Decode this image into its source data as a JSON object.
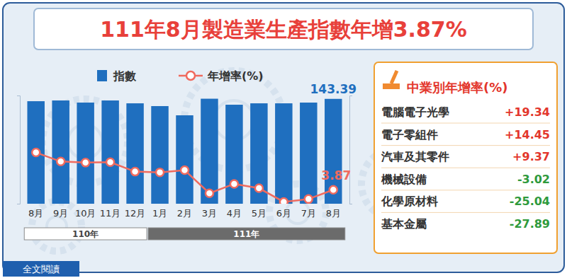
{
  "chart_data": [
    {
      "type": "bar",
      "title": "111年8月製造業生產指數年增3.87%",
      "categories": [
        "8月",
        "9月",
        "10月",
        "11月",
        "12月",
        "1月",
        "2月",
        "3月",
        "4月",
        "5月",
        "6月",
        "7月",
        "8月"
      ],
      "x_groups": [
        {
          "label": "110年",
          "count": 5
        },
        {
          "label": "111年",
          "count": 8
        }
      ],
      "series": [
        {
          "name": "指數",
          "type": "bar",
          "color": "#1f6fbf",
          "values": [
            140.2,
            141.2,
            138.3,
            141.2,
            137.3,
            133.5,
            120.9,
            143.6,
            135.4,
            137.3,
            137.3,
            138.3,
            143.39
          ],
          "value_labels": [
            null,
            null,
            null,
            null,
            null,
            null,
            null,
            null,
            null,
            null,
            null,
            null,
            "143.39"
          ]
        },
        {
          "name": "年增率(%)",
          "type": "line",
          "color": "#f06a5e",
          "marker": "circle",
          "axis": "y2",
          "values": [
            14.2,
            11.7,
            11.4,
            11.5,
            8.9,
            8.7,
            9.3,
            2.9,
            5.5,
            4.3,
            0.5,
            1.3,
            3.87
          ],
          "value_labels": [
            null,
            null,
            null,
            null,
            null,
            null,
            null,
            null,
            null,
            null,
            null,
            null,
            "3.87"
          ]
        }
      ],
      "ylim": [
        0,
        148
      ],
      "yticks": [
        0
      ],
      "y2lim": [
        0,
        30
      ],
      "y2ticks": [
        0
      ],
      "tick_labels": "x",
      "data_labels": true,
      "legend": "top"
    },
    {
      "type": "table",
      "title": "中業別年增率(%)",
      "categories": [
        "電腦電子光學",
        "電子零組件",
        "汽車及其零件",
        "機械設備",
        "化學原材料",
        "基本金屬"
      ],
      "values": [
        19.34,
        14.45,
        9.37,
        -3.02,
        -25.04,
        -27.89
      ],
      "value_labels": [
        "+19.34",
        "+14.45",
        "+9.37",
        "-3.02",
        "-25.04",
        "-27.89"
      ],
      "colors": [
        "#e3362c",
        "#e3362c",
        "#e3362c",
        "#2f9a3c",
        "#2f9a3c",
        "#2f9a3c"
      ]
    }
  ],
  "link_text": "全文閱讀"
}
